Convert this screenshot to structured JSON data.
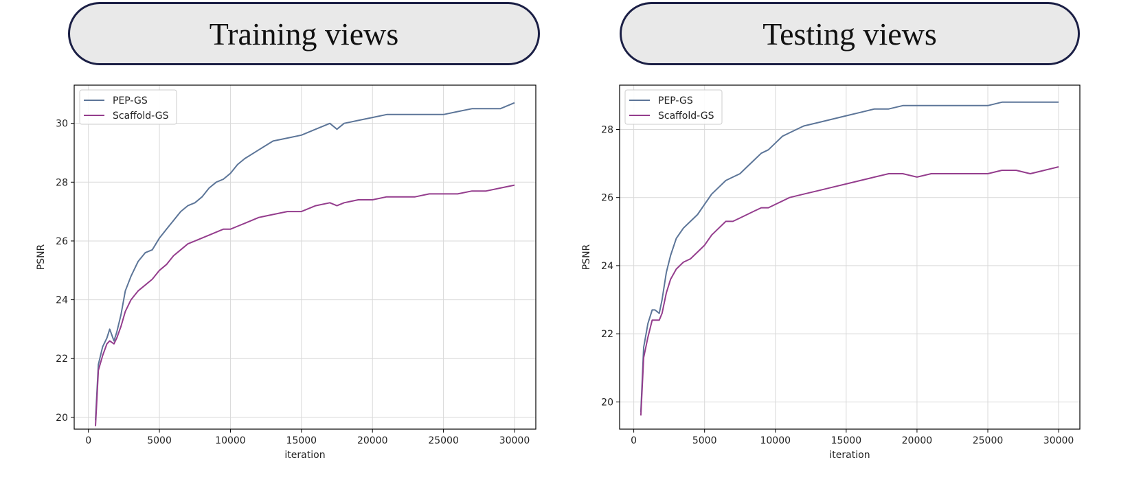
{
  "panels": {
    "left_title": "Training views",
    "right_title": "Testing views"
  },
  "colors": {
    "pep_gs": "#5c7598",
    "scaffold_gs": "#943d8d",
    "grid": "#d9d9d9",
    "axes": "#000000"
  },
  "chart_data": [
    {
      "type": "line",
      "title": "Training views",
      "xlabel": "iteration",
      "ylabel": "PSNR",
      "xlim": [
        -1000,
        31500
      ],
      "ylim": [
        19.6,
        31.3
      ],
      "xticks": [
        0,
        5000,
        10000,
        15000,
        20000,
        25000,
        30000
      ],
      "yticks": [
        20,
        22,
        24,
        26,
        28,
        30
      ],
      "grid": true,
      "legend": "top-left",
      "series": [
        {
          "name": "PEP-GS",
          "color": "#5c7598",
          "x": [
            500,
            700,
            1000,
            1300,
            1500,
            1800,
            2000,
            2300,
            2600,
            3000,
            3500,
            4000,
            4500,
            5000,
            5500,
            6000,
            6500,
            7000,
            7500,
            8000,
            8500,
            9000,
            9500,
            10000,
            10500,
            11000,
            12000,
            13000,
            14000,
            15000,
            16000,
            17000,
            17500,
            18000,
            19000,
            20000,
            21000,
            22000,
            23000,
            24000,
            25000,
            26000,
            27000,
            28000,
            29000,
            30000
          ],
          "y": [
            19.9,
            21.8,
            22.4,
            22.7,
            23.0,
            22.6,
            22.9,
            23.5,
            24.3,
            24.8,
            25.3,
            25.6,
            25.7,
            26.1,
            26.4,
            26.7,
            27.0,
            27.2,
            27.3,
            27.5,
            27.8,
            28.0,
            28.1,
            28.3,
            28.6,
            28.8,
            29.1,
            29.4,
            29.5,
            29.6,
            29.8,
            30.0,
            29.8,
            30.0,
            30.1,
            30.2,
            30.3,
            30.3,
            30.3,
            30.3,
            30.3,
            30.4,
            30.5,
            30.5,
            30.5,
            30.7
          ]
        },
        {
          "name": "Scaffold-GS",
          "color": "#943d8d",
          "x": [
            500,
            700,
            1000,
            1300,
            1500,
            1800,
            2000,
            2300,
            2600,
            3000,
            3500,
            4000,
            4500,
            5000,
            5500,
            6000,
            6500,
            7000,
            7500,
            8000,
            8500,
            9000,
            9500,
            10000,
            10500,
            11000,
            12000,
            13000,
            14000,
            15000,
            16000,
            17000,
            17500,
            18000,
            19000,
            20000,
            21000,
            22000,
            23000,
            24000,
            25000,
            26000,
            27000,
            28000,
            29000,
            30000
          ],
          "y": [
            19.7,
            21.6,
            22.1,
            22.5,
            22.6,
            22.5,
            22.7,
            23.1,
            23.6,
            24.0,
            24.3,
            24.5,
            24.7,
            25.0,
            25.2,
            25.5,
            25.7,
            25.9,
            26.0,
            26.1,
            26.2,
            26.3,
            26.4,
            26.4,
            26.5,
            26.6,
            26.8,
            26.9,
            27.0,
            27.0,
            27.2,
            27.3,
            27.2,
            27.3,
            27.4,
            27.4,
            27.5,
            27.5,
            27.5,
            27.6,
            27.6,
            27.6,
            27.7,
            27.7,
            27.8,
            27.9
          ]
        }
      ]
    },
    {
      "type": "line",
      "title": "Testing views",
      "xlabel": "iteration",
      "ylabel": "PSNR",
      "xlim": [
        -1000,
        31500
      ],
      "ylim": [
        19.2,
        29.3
      ],
      "xticks": [
        0,
        5000,
        10000,
        15000,
        20000,
        25000,
        30000
      ],
      "yticks": [
        20,
        22,
        24,
        26,
        28
      ],
      "grid": true,
      "legend": "top-left",
      "series": [
        {
          "name": "PEP-GS",
          "color": "#5c7598",
          "x": [
            500,
            700,
            1000,
            1300,
            1500,
            1800,
            2000,
            2300,
            2600,
            3000,
            3500,
            4000,
            4500,
            5000,
            5500,
            6000,
            6500,
            7000,
            7500,
            8000,
            8500,
            9000,
            9500,
            10000,
            10500,
            11000,
            12000,
            13000,
            14000,
            15000,
            16000,
            17000,
            18000,
            19000,
            20000,
            21000,
            22000,
            23000,
            24000,
            25000,
            26000,
            27000,
            28000,
            29000,
            30000
          ],
          "y": [
            19.7,
            21.6,
            22.3,
            22.7,
            22.7,
            22.6,
            23.0,
            23.8,
            24.3,
            24.8,
            25.1,
            25.3,
            25.5,
            25.8,
            26.1,
            26.3,
            26.5,
            26.6,
            26.7,
            26.9,
            27.1,
            27.3,
            27.4,
            27.6,
            27.8,
            27.9,
            28.1,
            28.2,
            28.3,
            28.4,
            28.5,
            28.6,
            28.6,
            28.7,
            28.7,
            28.7,
            28.7,
            28.7,
            28.7,
            28.7,
            28.8,
            28.8,
            28.8,
            28.8,
            28.8
          ]
        },
        {
          "name": "Scaffold-GS",
          "color": "#943d8d",
          "x": [
            500,
            700,
            1000,
            1300,
            1500,
            1800,
            2000,
            2300,
            2600,
            3000,
            3500,
            4000,
            4500,
            5000,
            5500,
            6000,
            6500,
            7000,
            7500,
            8000,
            8500,
            9000,
            9500,
            10000,
            10500,
            11000,
            12000,
            13000,
            14000,
            15000,
            16000,
            17000,
            18000,
            19000,
            20000,
            21000,
            22000,
            23000,
            24000,
            25000,
            26000,
            27000,
            28000,
            29000,
            30000
          ],
          "y": [
            19.6,
            21.3,
            21.9,
            22.4,
            22.4,
            22.4,
            22.6,
            23.2,
            23.6,
            23.9,
            24.1,
            24.2,
            24.4,
            24.6,
            24.9,
            25.1,
            25.3,
            25.3,
            25.4,
            25.5,
            25.6,
            25.7,
            25.7,
            25.8,
            25.9,
            26.0,
            26.1,
            26.2,
            26.3,
            26.4,
            26.5,
            26.6,
            26.7,
            26.7,
            26.6,
            26.7,
            26.7,
            26.7,
            26.7,
            26.7,
            26.8,
            26.8,
            26.7,
            26.8,
            26.9
          ]
        }
      ]
    }
  ]
}
